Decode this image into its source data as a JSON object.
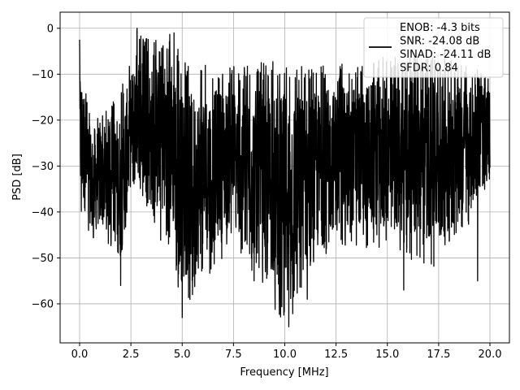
{
  "chart_data": {
    "type": "line",
    "xlabel": "Frequency [MHz]",
    "ylabel": "PSD [dB]",
    "xlim": [
      -0.95,
      20.95
    ],
    "ylim": [
      -68.5,
      3.5
    ],
    "x_ticks": [
      0.0,
      2.5,
      5.0,
      7.5,
      10.0,
      12.5,
      15.0,
      17.5,
      20.0
    ],
    "x_tick_labels": [
      "0.0",
      "2.5",
      "5.0",
      "7.5",
      "10.0",
      "12.5",
      "15.0",
      "17.5",
      "20.0"
    ],
    "y_ticks": [
      0,
      -10,
      -20,
      -30,
      -40,
      -50,
      -60
    ],
    "y_tick_labels": [
      "0",
      "−10",
      "−20",
      "−30",
      "−40",
      "−50",
      "−60"
    ],
    "grid": true,
    "legend_position": "top-right",
    "series": [
      {
        "name": "ENOB: -4.3 bits\nSNR: -24.08 dB\nSINAD: -24.11 dB\nSFDR: 0.84",
        "color": "#000000",
        "x_range": [
          0.0,
          20.0
        ],
        "envelope": [
          {
            "x": 0.0,
            "upper": -2.5,
            "lower": -42
          },
          {
            "x": 0.5,
            "upper": -18,
            "lower": -46
          },
          {
            "x": 1.0,
            "upper": -18,
            "lower": -47
          },
          {
            "x": 1.5,
            "upper": -17,
            "lower": -48
          },
          {
            "x": 2.0,
            "upper": -13,
            "lower": -56
          },
          {
            "x": 2.5,
            "upper": -6,
            "lower": -38
          },
          {
            "x": 2.8,
            "upper": 0,
            "lower": -36
          },
          {
            "x": 3.5,
            "upper": -3,
            "lower": -45
          },
          {
            "x": 4.5,
            "upper": -0.5,
            "lower": -48
          },
          {
            "x": 5.0,
            "upper": -7,
            "lower": -63
          },
          {
            "x": 5.5,
            "upper": -8,
            "lower": -58
          },
          {
            "x": 7.5,
            "upper": -8,
            "lower": -47
          },
          {
            "x": 10.0,
            "upper": -7,
            "lower": -65
          },
          {
            "x": 11.0,
            "upper": -8,
            "lower": -59
          },
          {
            "x": 12.5,
            "upper": -8,
            "lower": -48
          },
          {
            "x": 15.0,
            "upper": -6,
            "lower": -48
          },
          {
            "x": 17.5,
            "upper": -6,
            "lower": -53
          },
          {
            "x": 20.0,
            "upper": -10,
            "lower": -36
          }
        ],
        "notable_dips": [
          {
            "x": 2.0,
            "y": -56
          },
          {
            "x": 5.0,
            "y": -63
          },
          {
            "x": 5.5,
            "y": -58
          },
          {
            "x": 8.5,
            "y": -55
          },
          {
            "x": 10.1,
            "y": -52
          },
          {
            "x": 10.2,
            "y": -65
          },
          {
            "x": 11.1,
            "y": -59
          },
          {
            "x": 15.8,
            "y": -57
          },
          {
            "x": 19.4,
            "y": -55
          }
        ],
        "notable_peaks": [
          {
            "x": 0.0,
            "y": -2.5
          },
          {
            "x": 2.8,
            "y": 0
          },
          {
            "x": 4.6,
            "y": -1
          },
          {
            "x": 17.8,
            "y": -5
          }
        ]
      }
    ]
  }
}
